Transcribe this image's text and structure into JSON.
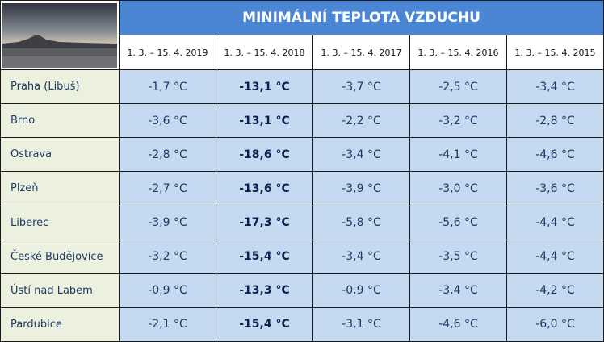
{
  "title": "MINIMÁLNÍ TEPLOTA VZDUCHU",
  "columns": [
    "1. 3. – 15. 4. 2019",
    "1. 3. – 15. 4. 2018",
    "1. 3. – 15. 4. 2017",
    "1. 3. – 15. 4. 2016",
    "1. 3. – 15. 4. 2015"
  ],
  "rows": [
    {
      "city": "Praha (Libuš)",
      "values": [
        "-1,7 °C",
        "-13,1 °C",
        "-3,7 °C",
        "-2,5 °C",
        "-3,4 °C"
      ]
    },
    {
      "city": "Brno",
      "values": [
        "-3,6 °C",
        "-13,1 °C",
        "-2,2 °C",
        "-3,2 °C",
        "-2,8 °C"
      ]
    },
    {
      "city": "Ostrava",
      "values": [
        "-2,8 °C",
        "-18,6 °C",
        "-3,4 °C",
        "-4,1 °C",
        "-4,6 °C"
      ]
    },
    {
      "city": "Plzeň",
      "values": [
        "-2,7 °C",
        "-13,6 °C",
        "-3,9 °C",
        "-3,0 °C",
        "-3,6 °C"
      ]
    },
    {
      "city": "Liberec",
      "values": [
        "-3,9 °C",
        "-17,3 °C",
        "-5,8 °C",
        "-5,6 °C",
        "-4,4 °C"
      ]
    },
    {
      "city": "České Budějovice",
      "values": [
        "-3,2 °C",
        "-15,4 °C",
        "-3,4 °C",
        "-3,5 °C",
        "-4,4 °C"
      ]
    },
    {
      "city": "Ústí nad Labem",
      "values": [
        "-0,9 °C",
        "-13,3 °C",
        "-0,9 °C",
        "-3,4 °C",
        "-4,2 °C"
      ]
    },
    {
      "city": "Pardubice",
      "values": [
        "-2,1 °C",
        "-15,4 °C",
        "-3,1 °C",
        "-4,6 °C",
        "-6,0 °C"
      ]
    }
  ],
  "bold_column": 1
}
